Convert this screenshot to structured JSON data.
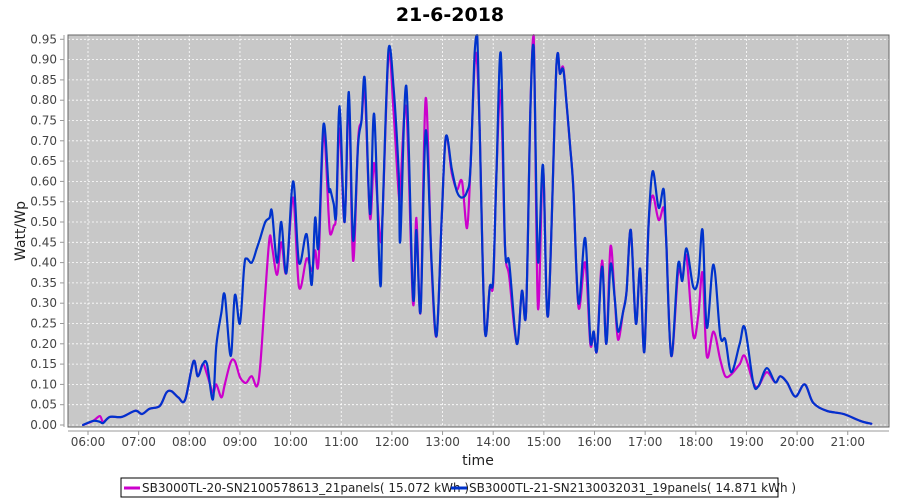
{
  "chart_data": {
    "type": "line",
    "title": "21-6-2018",
    "xlabel": "time",
    "ylabel": "Watt/Wp",
    "ylim": [
      0,
      0.96
    ],
    "xlim": [
      "05:36",
      "21:49"
    ],
    "grid": true,
    "legend_position": "bottom",
    "background_color": "#c8c8c8",
    "grid_color": "#ffffff",
    "y_ticks": [
      "0.00",
      "0.05",
      "0.10",
      "0.15",
      "0.20",
      "0.25",
      "0.30",
      "0.35",
      "0.40",
      "0.45",
      "0.50",
      "0.55",
      "0.60",
      "0.65",
      "0.70",
      "0.75",
      "0.80",
      "0.85",
      "0.90",
      "0.95"
    ],
    "x_ticks": [
      "06:00",
      "07:00",
      "08:00",
      "09:00",
      "10:00",
      "11:00",
      "12:00",
      "13:00",
      "14:00",
      "15:00",
      "16:00",
      "17:00",
      "18:00",
      "19:00",
      "20:00",
      "21:00"
    ],
    "x": [
      "05:54",
      "06:06",
      "06:14",
      "06:18",
      "06:26",
      "06:40",
      "06:56",
      "07:04",
      "07:13",
      "07:25",
      "07:33",
      "07:39",
      "07:47",
      "07:55",
      "08:05",
      "08:10",
      "08:16",
      "08:21",
      "08:28",
      "08:32",
      "08:38",
      "08:42",
      "08:49",
      "08:54",
      "09:00",
      "09:05",
      "09:08",
      "09:14",
      "09:20",
      "09:24",
      "09:30",
      "09:35",
      "09:38",
      "09:44",
      "09:49",
      "09:55",
      "10:03",
      "10:10",
      "10:19",
      "10:25",
      "10:29",
      "10:33",
      "10:39",
      "10:45",
      "10:47",
      "10:51",
      "10:54",
      "10:58",
      "11:04",
      "11:09",
      "11:14",
      "11:20",
      "11:24",
      "11:28",
      "11:34",
      "11:39",
      "11:46",
      "11:49",
      "11:56",
      "12:02",
      "12:08",
      "12:10",
      "12:17",
      "12:25",
      "12:29",
      "12:34",
      "12:40",
      "12:47",
      "12:53",
      "12:59",
      "13:04",
      "13:11",
      "13:17",
      "13:23",
      "13:29",
      "13:33",
      "13:38",
      "13:41",
      "13:44",
      "13:50",
      "13:56",
      "14:00",
      "14:04",
      "14:09",
      "14:14",
      "14:19",
      "14:28",
      "14:34",
      "14:39",
      "14:44",
      "14:48",
      "14:53",
      "14:59",
      "15:05",
      "15:15",
      "15:19",
      "15:23",
      "15:27",
      "15:31",
      "15:35",
      "15:41",
      "15:49",
      "15:55",
      "15:59",
      "16:03",
      "16:09",
      "16:14",
      "16:19",
      "16:24",
      "16:28",
      "16:34",
      "16:38",
      "16:43",
      "16:49",
      "16:54",
      "16:59",
      "17:04",
      "17:09",
      "17:16",
      "17:22",
      "17:25",
      "17:31",
      "17:39",
      "17:44",
      "17:49",
      "17:57",
      "18:03",
      "18:08",
      "18:13",
      "18:21",
      "18:29",
      "18:35",
      "18:42",
      "18:52",
      "18:58",
      "19:08",
      "19:14",
      "19:24",
      "19:34",
      "19:40",
      "19:48",
      "19:58",
      "20:09",
      "20:19",
      "20:35",
      "20:55",
      "21:15",
      "21:28"
    ],
    "series": [
      {
        "name": "SB3000TL-20-SN2100578613_21panels( 15.072 kWh )",
        "color": "#cc00cc",
        "values": [
          0,
          0.01,
          0.022,
          0.008,
          0.02,
          0.02,
          0.035,
          0.027,
          0.04,
          0.047,
          0.08,
          0.083,
          0.068,
          0.062,
          0.157,
          0.12,
          0.15,
          0.125,
          0.08,
          0.1,
          0.068,
          0.1,
          0.155,
          0.157,
          0.118,
          0.105,
          0.105,
          0.12,
          0.095,
          0.145,
          0.325,
          0.46,
          0.44,
          0.37,
          0.45,
          0.375,
          0.56,
          0.34,
          0.41,
          0.38,
          0.43,
          0.4,
          0.72,
          0.52,
          0.47,
          0.49,
          0.52,
          0.73,
          0.5,
          0.8,
          0.405,
          0.7,
          0.75,
          0.82,
          0.51,
          0.645,
          0.46,
          0.52,
          0.91,
          0.77,
          0.57,
          0.58,
          0.78,
          0.3,
          0.51,
          0.28,
          0.805,
          0.39,
          0.22,
          0.51,
          0.71,
          0.62,
          0.58,
          0.6,
          0.485,
          0.63,
          0.89,
          0.89,
          0.725,
          0.235,
          0.34,
          0.35,
          0.63,
          0.82,
          0.44,
          0.365,
          0.2,
          0.33,
          0.28,
          0.77,
          0.96,
          0.29,
          0.635,
          0.27,
          0.89,
          0.865,
          0.88,
          0.79,
          0.69,
          0.58,
          0.29,
          0.4,
          0.2,
          0.23,
          0.185,
          0.405,
          0.2,
          0.44,
          0.31,
          0.21,
          0.28,
          0.33,
          0.48,
          0.25,
          0.385,
          0.18,
          0.49,
          0.565,
          0.505,
          0.535,
          0.45,
          0.17,
          0.375,
          0.36,
          0.415,
          0.22,
          0.27,
          0.375,
          0.17,
          0.23,
          0.16,
          0.12,
          0.125,
          0.15,
          0.17,
          0.105,
          0.095,
          0.13,
          0.105,
          0.12,
          0.105,
          0.07,
          0.1,
          0.055,
          0.035,
          0.027,
          0.01,
          0.003
        ]
      },
      {
        "name": "SB3000TL-21-SN2130032031_19panels( 14.871 kWh )",
        "color": "#0033cc",
        "values": [
          0,
          0.01,
          0.008,
          0.005,
          0.02,
          0.02,
          0.035,
          0.027,
          0.04,
          0.047,
          0.08,
          0.083,
          0.068,
          0.062,
          0.157,
          0.12,
          0.15,
          0.15,
          0.063,
          0.195,
          0.277,
          0.32,
          0.17,
          0.32,
          0.25,
          0.39,
          0.41,
          0.4,
          0.435,
          0.46,
          0.5,
          0.51,
          0.525,
          0.4,
          0.5,
          0.375,
          0.6,
          0.4,
          0.47,
          0.345,
          0.51,
          0.44,
          0.74,
          0.585,
          0.58,
          0.545,
          0.52,
          0.785,
          0.5,
          0.82,
          0.455,
          0.69,
          0.75,
          0.85,
          0.52,
          0.765,
          0.35,
          0.52,
          0.925,
          0.83,
          0.62,
          0.455,
          0.835,
          0.315,
          0.48,
          0.28,
          0.725,
          0.4,
          0.22,
          0.51,
          0.71,
          0.63,
          0.575,
          0.56,
          0.575,
          0.63,
          0.915,
          0.96,
          0.725,
          0.235,
          0.34,
          0.36,
          0.63,
          0.915,
          0.44,
          0.4,
          0.2,
          0.33,
          0.28,
          0.77,
          0.93,
          0.405,
          0.64,
          0.27,
          0.89,
          0.865,
          0.875,
          0.79,
          0.69,
          0.58,
          0.3,
          0.46,
          0.21,
          0.23,
          0.185,
          0.39,
          0.2,
          0.395,
          0.31,
          0.23,
          0.28,
          0.33,
          0.48,
          0.25,
          0.385,
          0.18,
          0.49,
          0.625,
          0.535,
          0.58,
          0.45,
          0.17,
          0.395,
          0.355,
          0.435,
          0.34,
          0.36,
          0.48,
          0.24,
          0.395,
          0.22,
          0.21,
          0.13,
          0.2,
          0.24,
          0.105,
          0.095,
          0.14,
          0.105,
          0.12,
          0.105,
          0.07,
          0.1,
          0.055,
          0.035,
          0.027,
          0.01,
          0.003
        ]
      }
    ]
  }
}
